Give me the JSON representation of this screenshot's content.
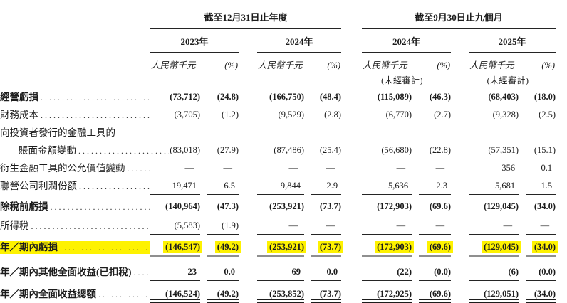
{
  "colors": {
    "highlight": "#fef200",
    "rule": "#242424",
    "gray_rule": "#8f8f8f",
    "text": "#1c1c1c"
  },
  "table": {
    "unit_label": "人民幣千元",
    "pct_label": "(%)",
    "col_groups": [
      {
        "title": "截至12月31日止年度",
        "years": [
          {
            "label": "2023年",
            "unaudited": ""
          },
          {
            "label": "2024年",
            "unaudited": ""
          }
        ]
      },
      {
        "title": "截至9月30日止九個月",
        "years": [
          {
            "label": "2024年",
            "unaudited": "(未經審計)"
          },
          {
            "label": "2025年",
            "unaudited": "(未經審計)"
          }
        ]
      }
    ],
    "rows": [
      {
        "label": "經營虧損",
        "bold": true,
        "values": [
          "(73,712)",
          "(24.8)",
          "(166,750)",
          "(48.4)",
          "(115,089)",
          "(46.3)",
          "(68,403)",
          "(18.0)"
        ]
      },
      {
        "label": "財務成本",
        "values": [
          "(3,705)",
          "(1.2)",
          "(9,529)",
          "(2.8)",
          "(6,770)",
          "(2.7)",
          "(9,328)",
          "(2.5)"
        ]
      },
      {
        "label": "向投資者發行的金融工具的",
        "values": null
      },
      {
        "label": "賬面金額變動",
        "indent": true,
        "values": [
          "(83,018)",
          "(27.9)",
          "(87,486)",
          "(25.4)",
          "(56,680)",
          "(22.8)",
          "(57,351)",
          "(15.1)"
        ]
      },
      {
        "label": "衍生金融工具的公允價值變動",
        "values": [
          "—",
          "—",
          "—",
          "—",
          "—",
          "—",
          "356",
          "0.1"
        ]
      },
      {
        "label": "聯營公司利潤份額",
        "rule_below": "single",
        "values": [
          "19,471",
          "6.5",
          "9,844",
          "2.9",
          "5,636",
          "2.3",
          "5,681",
          "1.5"
        ]
      },
      {
        "label": "除稅前虧損",
        "bold": true,
        "values": [
          "(140,964)",
          "(47.3)",
          "(253,921)",
          "(73.7)",
          "(172,903)",
          "(69.6)",
          "(129,045)",
          "(34.0)"
        ]
      },
      {
        "label": "所得稅",
        "rule_below": "single",
        "values": [
          "(5,583)",
          "(1.9)",
          "—",
          "—",
          "—",
          "—",
          "—",
          "—"
        ]
      },
      {
        "label": "年／期內虧損",
        "bold": true,
        "highlight": true,
        "rule_below": "gray",
        "values": [
          "(146,547)",
          "(49.2)",
          "(253,921)",
          "(73.7)",
          "(172,903)",
          "(69.6)",
          "(129,045)",
          "(34.0)"
        ]
      },
      {
        "label": "年／期內其他全面收益(已扣稅)",
        "bold": true,
        "rule_below": "single",
        "values": [
          "23",
          "0.0",
          "69",
          "0.0",
          "(22)",
          "(0.0)",
          "(6)",
          "(0.0)"
        ]
      },
      {
        "label": "年／期內全面收益總額",
        "bold": true,
        "rule_below": "double",
        "values": [
          "(146,524)",
          "(49.2)",
          "(253,852)",
          "(73.7)",
          "(172,925)",
          "(69.6)",
          "(129,051)",
          "(34.0)"
        ]
      }
    ]
  }
}
